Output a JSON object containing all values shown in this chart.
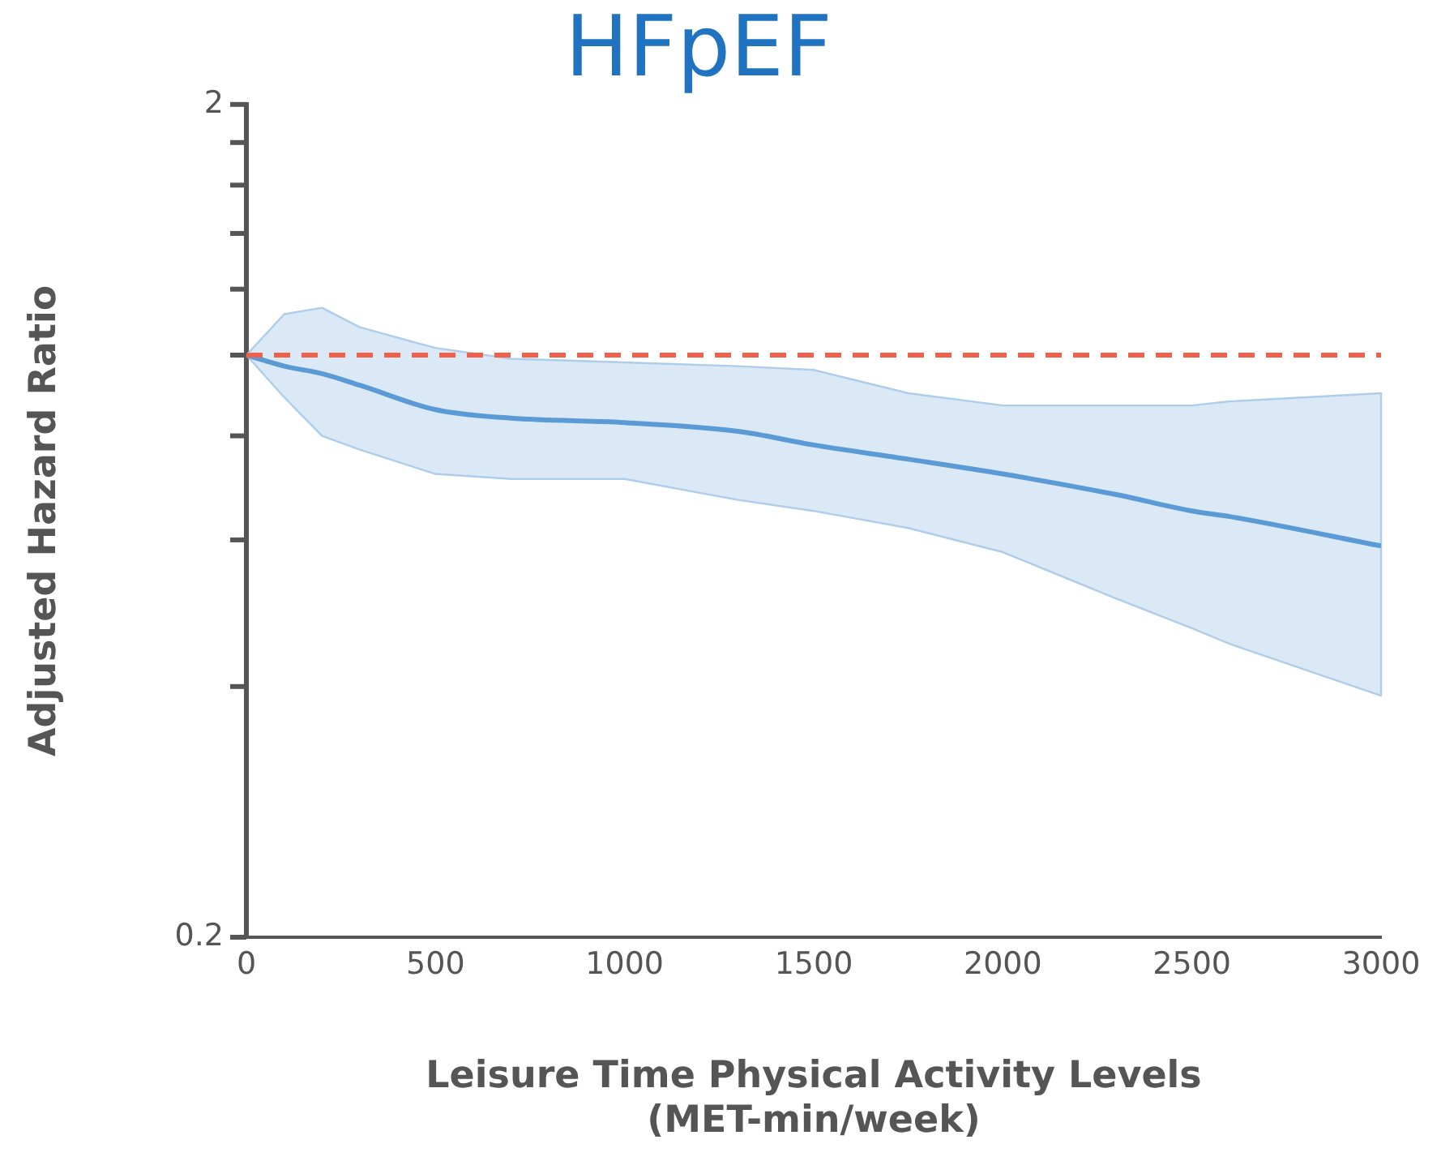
{
  "chart_data": {
    "type": "line",
    "title": "HFpEF",
    "xlabel": "Leisure Time Physical Activity Levels\n(MET-min/week)",
    "ylabel": "Adjusted Hazard Ratio",
    "x": [
      0,
      100,
      200,
      300,
      500,
      700,
      1000,
      1300,
      1500,
      1750,
      2000,
      2300,
      2500,
      2600,
      3000
    ],
    "series": [
      {
        "color": "#5b9bd5",
        "values": [
          1.0,
          0.97,
          0.95,
          0.92,
          0.86,
          0.84,
          0.83,
          0.81,
          0.78,
          0.75,
          0.72,
          0.68,
          0.65,
          0.64,
          0.59
        ],
        "lower": [
          1.0,
          0.89,
          0.8,
          0.77,
          0.72,
          0.71,
          0.71,
          0.67,
          0.65,
          0.62,
          0.58,
          0.51,
          0.47,
          0.45,
          0.39
        ],
        "upper": [
          1.0,
          1.12,
          1.14,
          1.08,
          1.02,
          0.99,
          0.98,
          0.97,
          0.96,
          0.9,
          0.87,
          0.87,
          0.87,
          0.88,
          0.9
        ]
      }
    ],
    "xlim": [
      0,
      3000
    ],
    "xticks": [
      0,
      500,
      1000,
      1500,
      2000,
      2500,
      3000
    ],
    "ylim": [
      0.2,
      2
    ],
    "yticks": [
      0.2,
      {
        "value": 0.4,
        "label": null
      },
      {
        "value": 0.6,
        "label": null
      },
      {
        "value": 0.8,
        "label": null
      },
      {
        "value": 1,
        "label": null
      },
      {
        "value": 1.2,
        "label": null
      },
      {
        "value": 1.4,
        "label": null
      },
      {
        "value": 1.6,
        "label": null
      },
      {
        "value": 1.8,
        "label": null
      },
      2
    ],
    "log": "y",
    "grid": false,
    "legend": false,
    "marker": "none",
    "line_style": "solid",
    "ref_lines": [
      {
        "axis": "y",
        "value": 1,
        "color": "#f0604a",
        "line_style": "dashed"
      }
    ]
  }
}
